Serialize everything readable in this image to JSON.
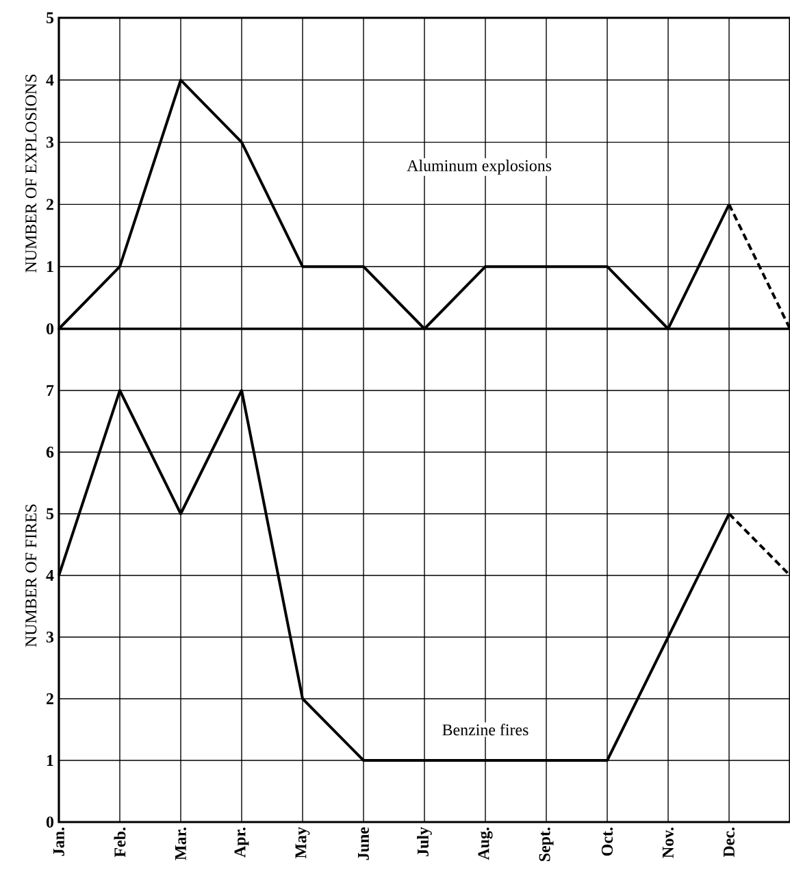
{
  "chart_data": [
    {
      "type": "line",
      "ylabel": "NUMBER OF EXPLOSIONS",
      "categories": [
        null,
        null,
        null,
        null,
        null,
        null,
        null,
        null,
        null,
        null,
        null,
        null,
        null
      ],
      "series": [
        {
          "name": "Aluminum explosions",
          "color": "#000000",
          "values": [
            0,
            1,
            4,
            3,
            1,
            1,
            0,
            1,
            1,
            1,
            0,
            2,
            null
          ]
        },
        {
          "color": "#000000",
          "line_style": "dashed",
          "values": [
            null,
            null,
            null,
            null,
            null,
            null,
            null,
            null,
            null,
            null,
            null,
            2,
            0
          ]
        }
      ],
      "ylim": [
        0,
        5
      ],
      "yticks": [
        0,
        1,
        2,
        3,
        4,
        5
      ],
      "grid": true
    },
    {
      "type": "line",
      "ylabel": "NUMBER OF FIRES",
      "categories": [
        "Jan.",
        "Feb.",
        "Mar.",
        "Apr.",
        "May",
        "June",
        "July",
        "Aug.",
        "Sept.",
        "Oct.",
        "Nov.",
        "Dec.",
        null
      ],
      "series": [
        {
          "name": "Benzine fires",
          "color": "#000000",
          "values": [
            4,
            7,
            5,
            7,
            2,
            1,
            1,
            1,
            1,
            1,
            3,
            5,
            null
          ]
        },
        {
          "color": "#000000",
          "line_style": "dashed",
          "values": [
            null,
            null,
            null,
            null,
            null,
            null,
            null,
            null,
            null,
            null,
            null,
            5,
            4
          ]
        }
      ],
      "ylim": [
        0,
        8
      ],
      "yticks": [
        0,
        1,
        2,
        3,
        4,
        5,
        6,
        7
      ],
      "grid": true
    }
  ]
}
